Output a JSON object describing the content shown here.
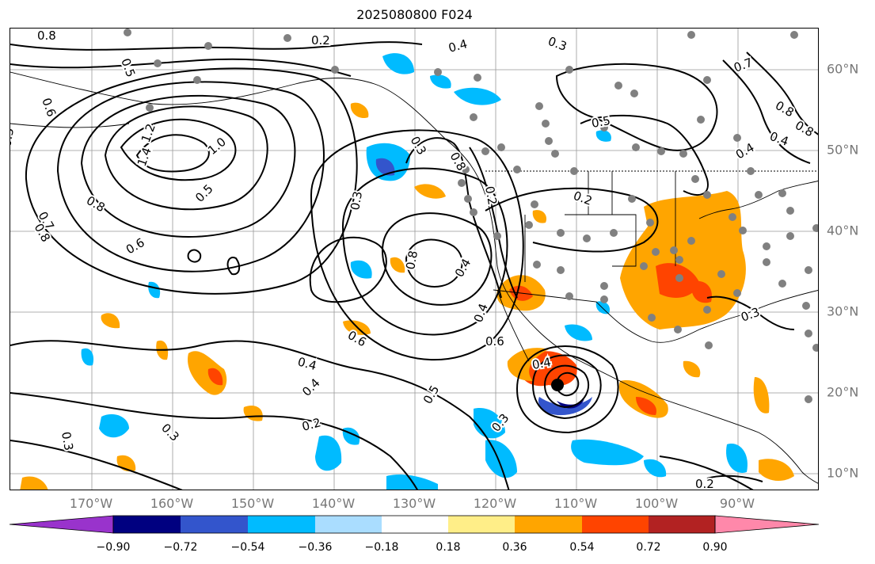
{
  "title": "2025080800 F024",
  "lat_labels": [
    "60°N",
    "50°N",
    "40°N",
    "30°N",
    "20°N",
    "10°N"
  ],
  "lon_labels": [
    "170°W",
    "160°W",
    "150°W",
    "140°W",
    "130°W",
    "120°W",
    "110°W",
    "100°W",
    "90°W"
  ],
  "colorbar": {
    "ticks": [
      "−0.90",
      "−0.72",
      "−0.54",
      "−0.36",
      "−0.18",
      "0.18",
      "0.36",
      "0.54",
      "0.72",
      "0.90"
    ],
    "colors": [
      "#9933cc",
      "#000080",
      "#3355cc",
      "#00bbff",
      "#aaddff",
      "#ffffff",
      "#ffee88",
      "#ffa500",
      "#ff4400",
      "#b22222",
      "#ff88aa"
    ]
  },
  "contour_labels": [
    "0.8",
    "0.2",
    "0.4",
    "0.3",
    "0.5",
    "0.7",
    "0.8",
    "0.8",
    "0.6",
    "1.2",
    "1.4",
    "1.0",
    "0.5",
    "0.8",
    "0.7",
    "0.8",
    "0.6",
    "0.5",
    "0.3",
    "0.8",
    "0.8",
    "0.2",
    "0.2",
    "0.5",
    "0.4",
    "0.4",
    "0.6",
    "0.4",
    "0.4",
    "0.5",
    "0.3",
    "0.3",
    "0.2",
    "0.3",
    "0.3",
    "0.2",
    "0.6",
    "0.4",
    "0.4",
    "0.4",
    "0.3"
  ],
  "colors": {
    "station_dots": "#808080",
    "contours": "#000000",
    "grid": "#999999",
    "land_boundary": "#000000"
  }
}
